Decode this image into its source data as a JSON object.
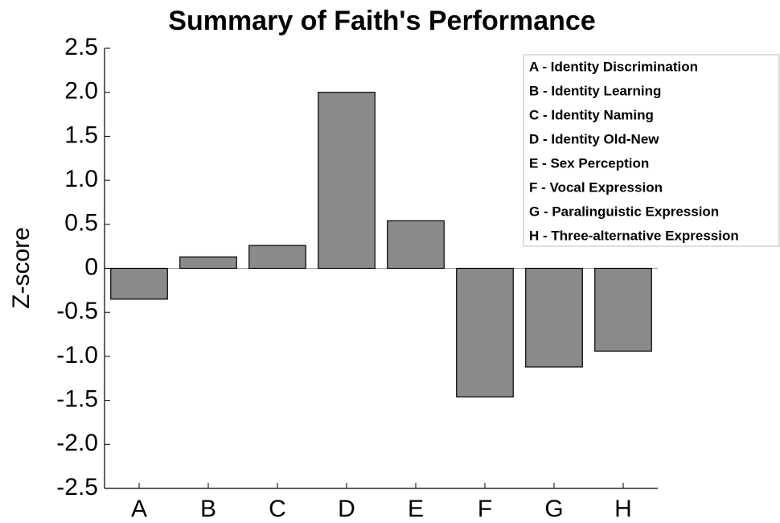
{
  "chart_data": {
    "type": "bar",
    "title": "Summary of Faith's Performance",
    "y_label": "Z-score",
    "categories": [
      "A",
      "B",
      "C",
      "D",
      "E",
      "F",
      "G",
      "H"
    ],
    "values": [
      -0.35,
      0.13,
      0.26,
      2.0,
      0.54,
      -1.46,
      -1.12,
      -0.94
    ],
    "color": "#8a8a8a",
    "ylim": [
      -2.5,
      2.5
    ],
    "yticks": [
      2.5,
      {
        "value": 2,
        "label": "2.0"
      },
      1.5,
      {
        "value": 1,
        "label": "1.0"
      },
      0.5,
      0,
      -0.5,
      {
        "value": -1,
        "label": "-1.0"
      },
      -1.5,
      {
        "value": -2,
        "label": "-2.0"
      },
      -2.5
    ],
    "legend": [
      "A - Identity Discrimination",
      "B - Identity Learning",
      "C - Identity Naming",
      "D - Identity Old-New",
      "E - Sex Perception",
      "F - Vocal Expression",
      "G - Paralinguistic Expression",
      "H - Three-alternative Expression"
    ]
  }
}
